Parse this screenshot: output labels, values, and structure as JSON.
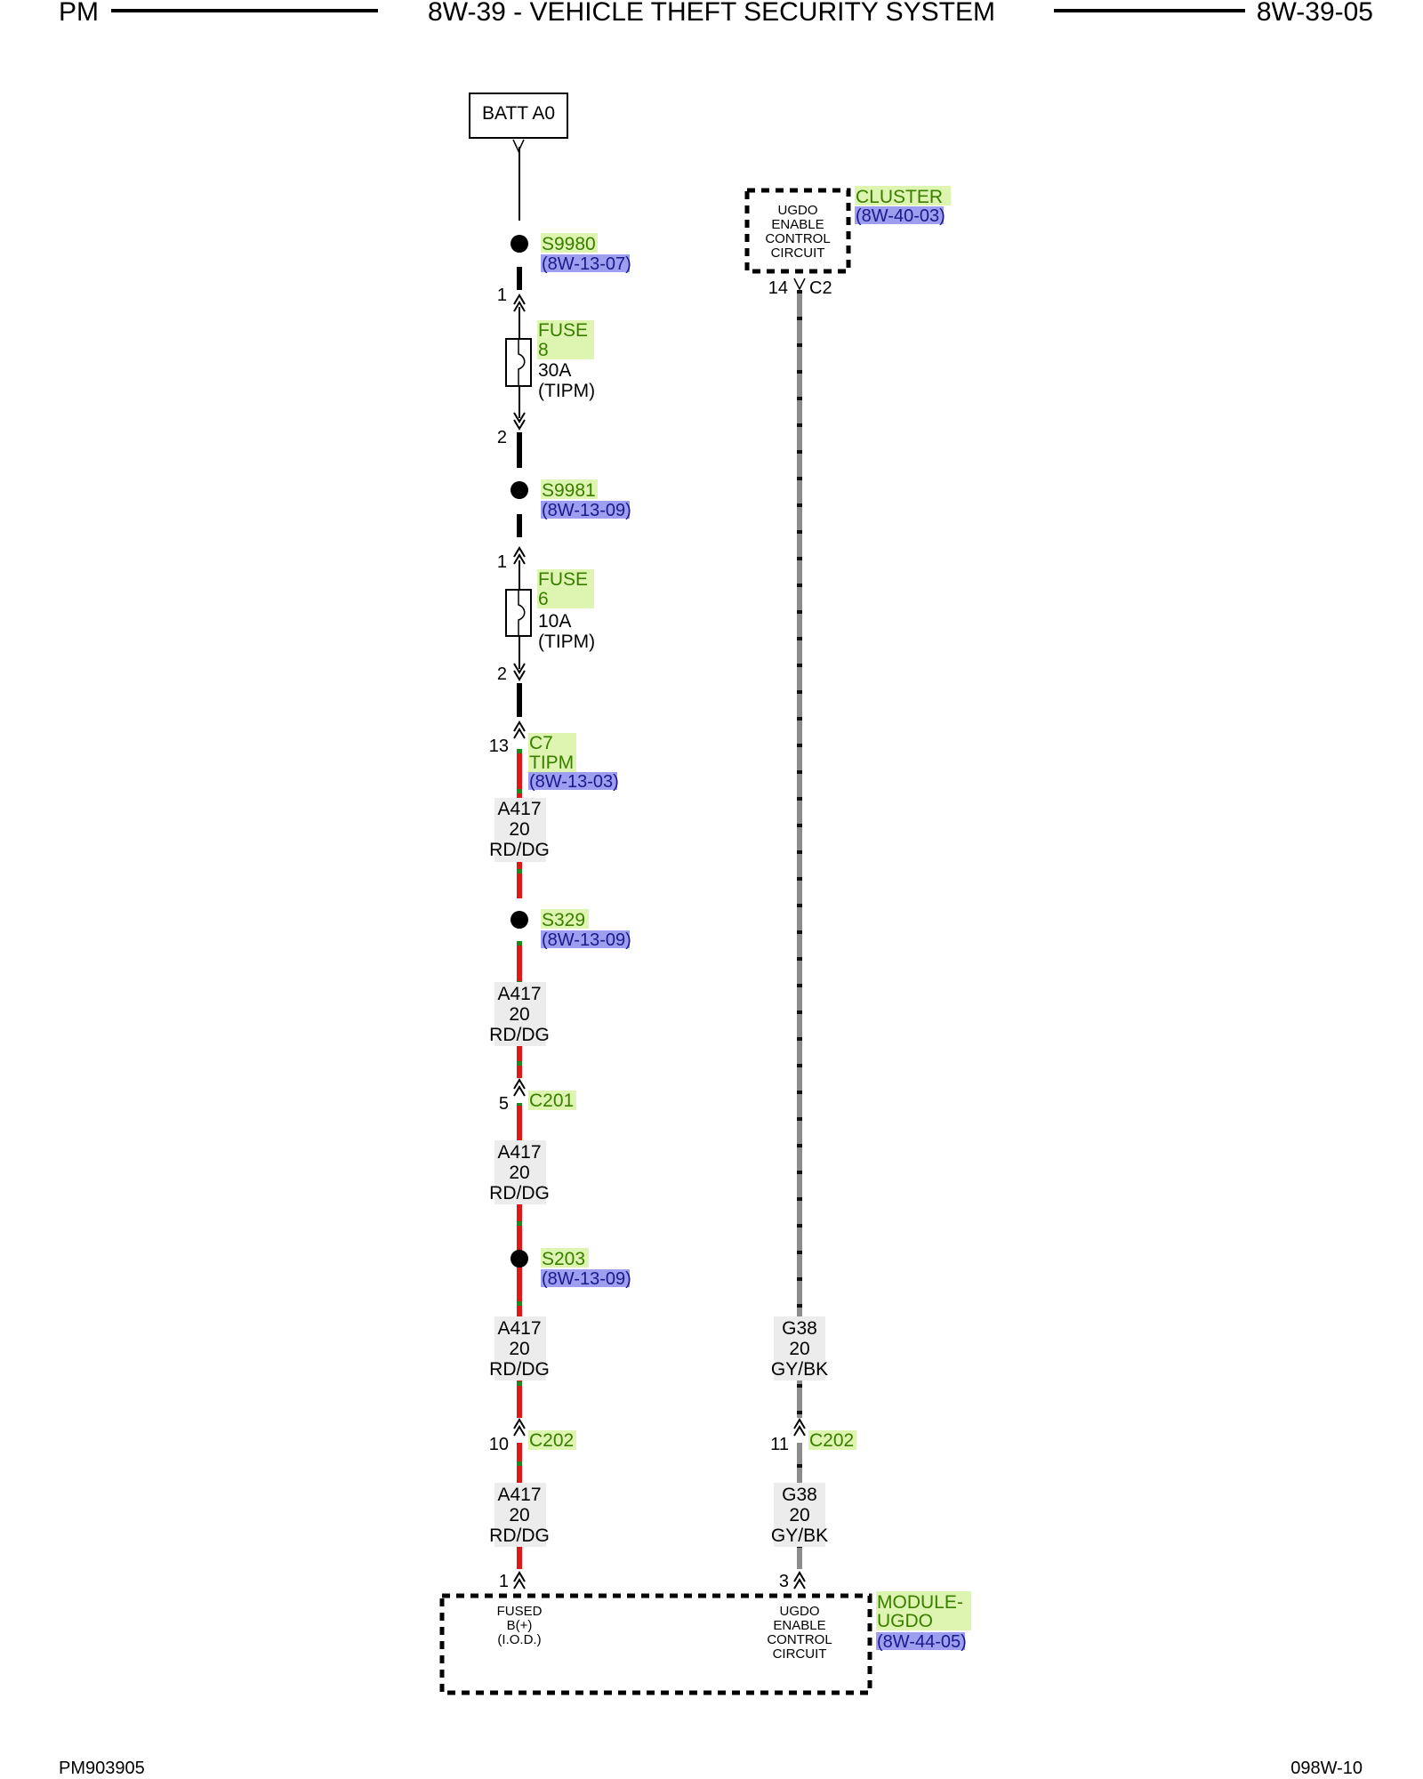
{
  "header": {
    "left": "PM",
    "title": "8W-39 - VEHICLE THEFT SECURITY SYSTEM",
    "right": "8W-39-05"
  },
  "footer": {
    "left": "PM903905",
    "right": "098W-10"
  },
  "batt": {
    "label": "BATT A0"
  },
  "splices": {
    "s9980": {
      "name": "S9980",
      "ref": "(8W-13-07)"
    },
    "s9981": {
      "name": "S9981",
      "ref": "(8W-13-09)"
    },
    "s329": {
      "name": "S329",
      "ref": "(8W-13-09)"
    },
    "s203": {
      "name": "S203",
      "ref": "(8W-13-09)"
    }
  },
  "fuse8": {
    "name_line1": "FUSE",
    "name_line2": "8",
    "rating": "30A",
    "loc": "(TIPM)",
    "pin_in": "1",
    "pin_out": "2"
  },
  "fuse6": {
    "name_line1": "FUSE",
    "name_line2": "6",
    "rating": "10A",
    "loc": "(TIPM)",
    "pin_in": "1",
    "pin_out": "2"
  },
  "c7": {
    "pin": "13",
    "name_line1": "C7",
    "name_line2": "TIPM",
    "ref": "(8W-13-03)"
  },
  "wire_a417": {
    "circuit": "A417",
    "gauge": "20",
    "color": "RD/DG"
  },
  "wire_g38": {
    "circuit": "G38",
    "gauge": "20",
    "color": "GY/BK"
  },
  "c201": {
    "pin": "5",
    "name": "C201"
  },
  "c202_left": {
    "pin": "10",
    "name": "C202"
  },
  "c202_right": {
    "pin": "11",
    "name": "C202"
  },
  "cluster": {
    "name": "CLUSTER",
    "ref": "(8W-40-03)",
    "box_lines": [
      "UGDO",
      "ENABLE",
      "CONTROL",
      "CIRCUIT"
    ],
    "pin": "14",
    "connector": "C2"
  },
  "module": {
    "name_line1": "MODULE-",
    "name_line2": "UGDO",
    "ref": "(8W-44-05)",
    "left_pin": "1",
    "left_lines": [
      "FUSED",
      "B(+)",
      "(I.O.D.)"
    ],
    "right_pin": "3",
    "right_lines": [
      "UGDO",
      "ENABLE",
      "CONTROL",
      "CIRCUIT"
    ]
  },
  "colors": {
    "component_highlight": "#ddf5b0",
    "reference_highlight": "#9e9ef0",
    "wire_red": "#e01818",
    "wire_green": "#1a8a1a",
    "wire_gray": "#8c8c8c",
    "label_bg": "#ececec"
  }
}
